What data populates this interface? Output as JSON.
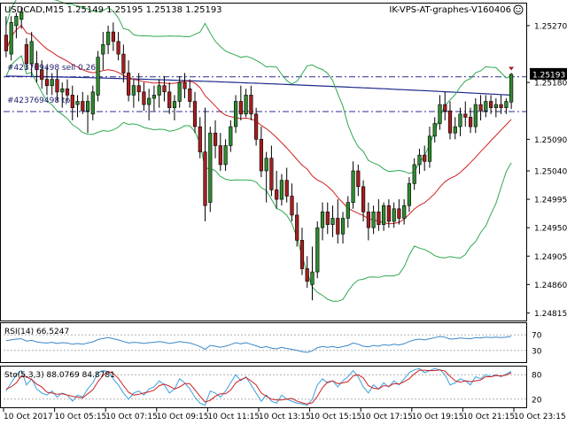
{
  "chart_data": {
    "type": "candlestick",
    "header": {
      "symbol_line": "USDCAD,M15  1.25149 1.25195 1.25138 1.25193",
      "watermark": "IK-VPS-AT-graphes-V160406"
    },
    "price_axis": {
      "ticks": [
        "1.25270",
        "1.25180",
        "1.25090",
        "1.25040",
        "1.24995",
        "1.24950",
        "1.24905",
        "1.24860",
        "1.24815"
      ],
      "tick_values": [
        1.2527,
        1.2518,
        1.2509,
        1.2504,
        1.24995,
        1.2495,
        1.24905,
        1.2486,
        1.24815
      ],
      "current_price_label": "1.25193",
      "current_price": 1.25193,
      "range": [
        1.24803,
        1.25305
      ]
    },
    "order_lines": [
      {
        "label": "#423769498 sell 0.26",
        "price": 1.25189,
        "color": "#2b2b8c"
      },
      {
        "label": "#423769498 tp",
        "price": 1.25134,
        "color": "#2b2b8c"
      }
    ],
    "time_axis": {
      "labels": [
        "10 Oct 2017",
        "10 Oct 05:15",
        "10 Oct 07:15",
        "10 Oct 09:15",
        "10 Oct 11:15",
        "10 Oct 13:15",
        "10 Oct 15:15",
        "10 Oct 17:15",
        "10 Oct 19:15",
        "10 Oct 21:15",
        "10 Oct 23:15"
      ],
      "label_bars": [
        0,
        10,
        20,
        30,
        40,
        50,
        60,
        70,
        80,
        90,
        100
      ]
    },
    "candles": [
      {
        "o": 1.25255,
        "h": 1.25285,
        "l": 1.2522,
        "c": 1.2523
      },
      {
        "o": 1.25225,
        "h": 1.25285,
        "l": 1.25215,
        "c": 1.25275
      },
      {
        "o": 1.2527,
        "h": 1.2529,
        "l": 1.2525,
        "c": 1.25285
      },
      {
        "o": 1.2528,
        "h": 1.253,
        "l": 1.25265,
        "c": 1.25292
      },
      {
        "o": 1.2524,
        "h": 1.2525,
        "l": 1.252,
        "c": 1.2521
      },
      {
        "o": 1.2521,
        "h": 1.2526,
        "l": 1.2519,
        "c": 1.25245
      },
      {
        "o": 1.2521,
        "h": 1.2523,
        "l": 1.2518,
        "c": 1.252
      },
      {
        "o": 1.252,
        "h": 1.25215,
        "l": 1.2517,
        "c": 1.25185
      },
      {
        "o": 1.25185,
        "h": 1.25205,
        "l": 1.2516,
        "c": 1.25175
      },
      {
        "o": 1.25175,
        "h": 1.25195,
        "l": 1.2516,
        "c": 1.25185
      },
      {
        "o": 1.25185,
        "h": 1.252,
        "l": 1.2515,
        "c": 1.25165
      },
      {
        "o": 1.25165,
        "h": 1.2518,
        "l": 1.2514,
        "c": 1.2517
      },
      {
        "o": 1.2517,
        "h": 1.25185,
        "l": 1.2515,
        "c": 1.2516
      },
      {
        "o": 1.2516,
        "h": 1.25175,
        "l": 1.2512,
        "c": 1.2514
      },
      {
        "o": 1.25145,
        "h": 1.2516,
        "l": 1.25125,
        "c": 1.2515
      },
      {
        "o": 1.2515,
        "h": 1.25165,
        "l": 1.2513,
        "c": 1.25135
      },
      {
        "o": 1.25135,
        "h": 1.2516,
        "l": 1.251,
        "c": 1.2515
      },
      {
        "o": 1.2513,
        "h": 1.25175,
        "l": 1.2512,
        "c": 1.25165
      },
      {
        "o": 1.2516,
        "h": 1.2523,
        "l": 1.2515,
        "c": 1.2522
      },
      {
        "o": 1.25225,
        "h": 1.2526,
        "l": 1.252,
        "c": 1.2524
      },
      {
        "o": 1.2524,
        "h": 1.2527,
        "l": 1.25225,
        "c": 1.2526
      },
      {
        "o": 1.2526,
        "h": 1.25275,
        "l": 1.2523,
        "c": 1.25245
      },
      {
        "o": 1.25245,
        "h": 1.2526,
        "l": 1.25215,
        "c": 1.25225
      },
      {
        "o": 1.25225,
        "h": 1.2524,
        "l": 1.2518,
        "c": 1.25195
      },
      {
        "o": 1.25195,
        "h": 1.25215,
        "l": 1.2515,
        "c": 1.2516
      },
      {
        "o": 1.2516,
        "h": 1.25185,
        "l": 1.2514,
        "c": 1.25175
      },
      {
        "o": 1.25175,
        "h": 1.25195,
        "l": 1.2515,
        "c": 1.25165
      },
      {
        "o": 1.25165,
        "h": 1.2518,
        "l": 1.25135,
        "c": 1.25145
      },
      {
        "o": 1.25145,
        "h": 1.2517,
        "l": 1.2512,
        "c": 1.25155
      },
      {
        "o": 1.25155,
        "h": 1.25175,
        "l": 1.25135,
        "c": 1.2516
      },
      {
        "o": 1.2516,
        "h": 1.25185,
        "l": 1.2514,
        "c": 1.25175
      },
      {
        "o": 1.25175,
        "h": 1.2519,
        "l": 1.2515,
        "c": 1.25165
      },
      {
        "o": 1.25165,
        "h": 1.2518,
        "l": 1.2513,
        "c": 1.2514
      },
      {
        "o": 1.2514,
        "h": 1.2516,
        "l": 1.2512,
        "c": 1.2515
      },
      {
        "o": 1.2515,
        "h": 1.2519,
        "l": 1.2514,
        "c": 1.2518
      },
      {
        "o": 1.2518,
        "h": 1.25195,
        "l": 1.25155,
        "c": 1.2517
      },
      {
        "o": 1.2517,
        "h": 1.25185,
        "l": 1.2514,
        "c": 1.2515
      },
      {
        "o": 1.2515,
        "h": 1.25165,
        "l": 1.251,
        "c": 1.2511
      },
      {
        "o": 1.2511,
        "h": 1.25125,
        "l": 1.2506,
        "c": 1.2507
      },
      {
        "o": 1.2507,
        "h": 1.2514,
        "l": 1.2496,
        "c": 1.24985
      },
      {
        "o": 1.2499,
        "h": 1.2511,
        "l": 1.24975,
        "c": 1.251
      },
      {
        "o": 1.251,
        "h": 1.2512,
        "l": 1.2506,
        "c": 1.2508
      },
      {
        "o": 1.2508,
        "h": 1.251,
        "l": 1.2504,
        "c": 1.2505
      },
      {
        "o": 1.2505,
        "h": 1.2509,
        "l": 1.2504,
        "c": 1.2508
      },
      {
        "o": 1.2508,
        "h": 1.2512,
        "l": 1.2507,
        "c": 1.2511
      },
      {
        "o": 1.2511,
        "h": 1.2516,
        "l": 1.251,
        "c": 1.2515
      },
      {
        "o": 1.2515,
        "h": 1.25175,
        "l": 1.2512,
        "c": 1.2513
      },
      {
        "o": 1.2513,
        "h": 1.2517,
        "l": 1.25125,
        "c": 1.2516
      },
      {
        "o": 1.2516,
        "h": 1.25175,
        "l": 1.2512,
        "c": 1.2513
      },
      {
        "o": 1.2513,
        "h": 1.2514,
        "l": 1.2508,
        "c": 1.2509
      },
      {
        "o": 1.2509,
        "h": 1.2511,
        "l": 1.2503,
        "c": 1.2504
      },
      {
        "o": 1.2504,
        "h": 1.2507,
        "l": 1.2499,
        "c": 1.2506
      },
      {
        "o": 1.2506,
        "h": 1.2508,
        "l": 1.25,
        "c": 1.2501
      },
      {
        "o": 1.2501,
        "h": 1.2504,
        "l": 1.2498,
        "c": 1.24995
      },
      {
        "o": 1.24995,
        "h": 1.25035,
        "l": 1.24985,
        "c": 1.25025
      },
      {
        "o": 1.25025,
        "h": 1.25045,
        "l": 1.2499,
        "c": 1.25
      },
      {
        "o": 1.25,
        "h": 1.2502,
        "l": 1.2496,
        "c": 1.2497
      },
      {
        "o": 1.2497,
        "h": 1.2499,
        "l": 1.2492,
        "c": 1.2493
      },
      {
        "o": 1.2493,
        "h": 1.2495,
        "l": 1.24875,
        "c": 1.24885
      },
      {
        "o": 1.24885,
        "h": 1.24905,
        "l": 1.24855,
        "c": 1.24865
      },
      {
        "o": 1.2486,
        "h": 1.2492,
        "l": 1.24835,
        "c": 1.2488
      },
      {
        "o": 1.2488,
        "h": 1.2496,
        "l": 1.2487,
        "c": 1.2495
      },
      {
        "o": 1.2495,
        "h": 1.2499,
        "l": 1.2493,
        "c": 1.24975
      },
      {
        "o": 1.24975,
        "h": 1.2499,
        "l": 1.2494,
        "c": 1.24955
      },
      {
        "o": 1.24955,
        "h": 1.24985,
        "l": 1.24935,
        "c": 1.24965
      },
      {
        "o": 1.24965,
        "h": 1.24995,
        "l": 1.24925,
        "c": 1.2494
      },
      {
        "o": 1.2494,
        "h": 1.24975,
        "l": 1.24925,
        "c": 1.24965
      },
      {
        "o": 1.24965,
        "h": 1.25,
        "l": 1.2495,
        "c": 1.2499
      },
      {
        "o": 1.2499,
        "h": 1.25055,
        "l": 1.2498,
        "c": 1.2504
      },
      {
        "o": 1.2504,
        "h": 1.2505,
        "l": 1.25,
        "c": 1.25015
      },
      {
        "o": 1.25015,
        "h": 1.25025,
        "l": 1.2496,
        "c": 1.24975
      },
      {
        "o": 1.24975,
        "h": 1.2499,
        "l": 1.2493,
        "c": 1.2495
      },
      {
        "o": 1.2495,
        "h": 1.24985,
        "l": 1.2494,
        "c": 1.24975
      },
      {
        "o": 1.24975,
        "h": 1.24995,
        "l": 1.24945,
        "c": 1.24955
      },
      {
        "o": 1.24955,
        "h": 1.2499,
        "l": 1.24945,
        "c": 1.24985
      },
      {
        "o": 1.24985,
        "h": 1.24995,
        "l": 1.2495,
        "c": 1.2496
      },
      {
        "o": 1.2496,
        "h": 1.2499,
        "l": 1.2495,
        "c": 1.2498
      },
      {
        "o": 1.2498,
        "h": 1.24995,
        "l": 1.24955,
        "c": 1.24965
      },
      {
        "o": 1.24965,
        "h": 1.24995,
        "l": 1.24955,
        "c": 1.24985
      },
      {
        "o": 1.24985,
        "h": 1.2503,
        "l": 1.24975,
        "c": 1.2502
      },
      {
        "o": 1.2502,
        "h": 1.2506,
        "l": 1.2501,
        "c": 1.2505
      },
      {
        "o": 1.2505,
        "h": 1.25075,
        "l": 1.25035,
        "c": 1.25065
      },
      {
        "o": 1.25065,
        "h": 1.2508,
        "l": 1.2504,
        "c": 1.25055
      },
      {
        "o": 1.25055,
        "h": 1.2511,
        "l": 1.25045,
        "c": 1.25095
      },
      {
        "o": 1.25095,
        "h": 1.25125,
        "l": 1.25085,
        "c": 1.25115
      },
      {
        "o": 1.25115,
        "h": 1.2516,
        "l": 1.25105,
        "c": 1.25145
      },
      {
        "o": 1.25145,
        "h": 1.25165,
        "l": 1.2512,
        "c": 1.25135
      },
      {
        "o": 1.25135,
        "h": 1.2515,
        "l": 1.2509,
        "c": 1.251
      },
      {
        "o": 1.251,
        "h": 1.25125,
        "l": 1.2509,
        "c": 1.2511
      },
      {
        "o": 1.2511,
        "h": 1.2514,
        "l": 1.25095,
        "c": 1.2513
      },
      {
        "o": 1.2513,
        "h": 1.2515,
        "l": 1.2511,
        "c": 1.25125
      },
      {
        "o": 1.25125,
        "h": 1.2514,
        "l": 1.251,
        "c": 1.2511
      },
      {
        "o": 1.2511,
        "h": 1.25155,
        "l": 1.251,
        "c": 1.25145
      },
      {
        "o": 1.25145,
        "h": 1.2516,
        "l": 1.2512,
        "c": 1.25135
      },
      {
        "o": 1.25135,
        "h": 1.2516,
        "l": 1.25125,
        "c": 1.2515
      },
      {
        "o": 1.2515,
        "h": 1.2516,
        "l": 1.2513,
        "c": 1.2514
      },
      {
        "o": 1.2514,
        "h": 1.25155,
        "l": 1.25125,
        "c": 1.25145
      },
      {
        "o": 1.25145,
        "h": 1.2516,
        "l": 1.2513,
        "c": 1.2514
      },
      {
        "o": 1.2514,
        "h": 1.25155,
        "l": 1.2513,
        "c": 1.2515
      },
      {
        "o": 1.25149,
        "h": 1.25195,
        "l": 1.25138,
        "c": 1.25193
      }
    ],
    "colors": {
      "bull": "#2e8b2e",
      "bear": "#a81e1e",
      "ma": "#d02020",
      "bands": "#2fa84f",
      "long_ma": "#1e2b8c",
      "rsi": "#3a86c8",
      "stoch_main": "#3aa0e0",
      "stoch_signal": "#d02020",
      "axis": "#000000",
      "level_line": "#b0b0b0",
      "bg": "#ffffff"
    },
    "overlays": {
      "ma_period": 20,
      "band_deviation": 2,
      "long_ma_line": {
        "start_price": 1.2519,
        "end_price": 1.2516
      }
    },
    "rsi": {
      "label": "RSI(14) 66.5247",
      "levels": [
        70,
        30
      ],
      "level_labels": [
        "70",
        "30"
      ],
      "range": [
        0,
        100
      ],
      "values": [
        55,
        57,
        59,
        60,
        54,
        56,
        52,
        50,
        49,
        51,
        48,
        50,
        49,
        46,
        48,
        46,
        49,
        52,
        58,
        61,
        63,
        60,
        57,
        53,
        49,
        51,
        50,
        48,
        50,
        51,
        53,
        51,
        48,
        50,
        53,
        51,
        49,
        45,
        40,
        33,
        43,
        41,
        38,
        41,
        45,
        50,
        47,
        50,
        46,
        42,
        37,
        40,
        36,
        34,
        38,
        35,
        33,
        30,
        27,
        25,
        29,
        37,
        40,
        38,
        40,
        37,
        40,
        43,
        49,
        46,
        41,
        39,
        43,
        41,
        45,
        43,
        46,
        44,
        47,
        53,
        57,
        59,
        57,
        60,
        63,
        66,
        64,
        59,
        60,
        62,
        61,
        60,
        63,
        62,
        64,
        63,
        64,
        63,
        64,
        66.5247
      ]
    },
    "stochastic": {
      "label": "Sto(5,3,3) 88.0769 84.8781",
      "levels": [
        80,
        20
      ],
      "level_labels": [
        "80",
        "20"
      ],
      "range": [
        0,
        100
      ],
      "main": [
        40,
        60,
        80,
        90,
        55,
        70,
        45,
        35,
        30,
        40,
        25,
        35,
        30,
        15,
        30,
        25,
        45,
        60,
        85,
        90,
        88,
        70,
        55,
        35,
        20,
        35,
        40,
        30,
        45,
        50,
        65,
        55,
        35,
        45,
        70,
        60,
        45,
        25,
        10,
        5,
        40,
        35,
        25,
        40,
        60,
        80,
        65,
        75,
        55,
        35,
        15,
        30,
        15,
        10,
        30,
        20,
        15,
        10,
        8,
        5,
        20,
        55,
        70,
        60,
        65,
        50,
        65,
        75,
        90,
        75,
        50,
        35,
        55,
        45,
        60,
        50,
        65,
        55,
        70,
        85,
        92,
        95,
        85,
        90,
        95,
        92,
        80,
        55,
        60,
        70,
        65,
        55,
        75,
        70,
        80,
        75,
        80,
        75,
        82,
        88.0769
      ],
      "signal": [
        45,
        50,
        60,
        77,
        75,
        68,
        57,
        50,
        37,
        35,
        32,
        33,
        30,
        27,
        25,
        23,
        33,
        43,
        63,
        78,
        88,
        83,
        71,
        53,
        37,
        30,
        32,
        35,
        38,
        42,
        53,
        57,
        52,
        45,
        50,
        58,
        58,
        43,
        27,
        13,
        17,
        27,
        33,
        33,
        42,
        60,
        68,
        73,
        65,
        55,
        35,
        27,
        20,
        18,
        18,
        20,
        22,
        15,
        11,
        8,
        11,
        27,
        48,
        62,
        65,
        58,
        60,
        63,
        77,
        80,
        72,
        53,
        47,
        45,
        53,
        52,
        58,
        57,
        63,
        70,
        82,
        91,
        91,
        90,
        90,
        92,
        89,
        76,
        65,
        62,
        65,
        63,
        65,
        67,
        75,
        75,
        78,
        77,
        79,
        84.8781
      ]
    }
  }
}
